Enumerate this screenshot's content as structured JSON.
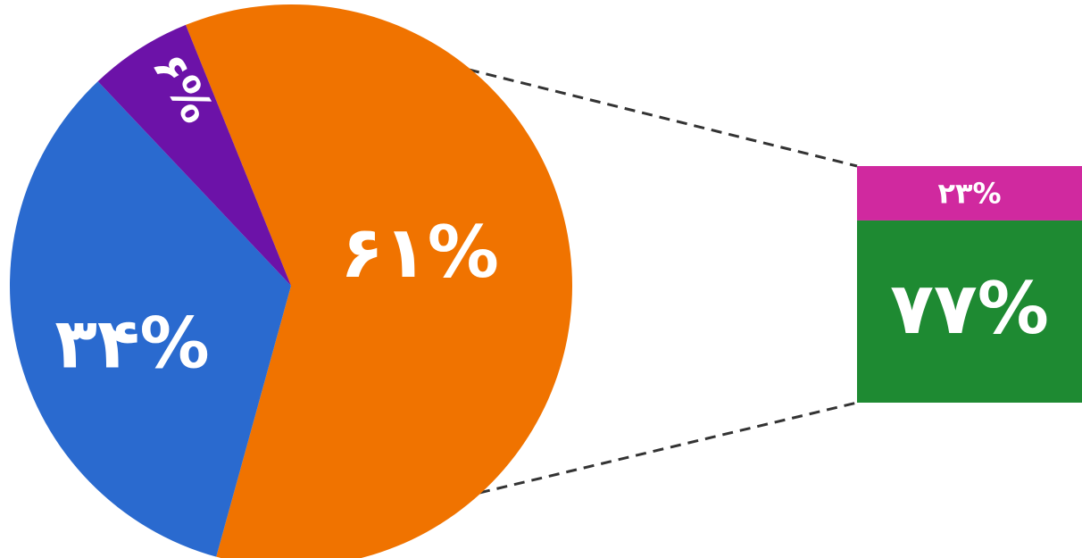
{
  "chart_data": {
    "type": "bar-of-pie",
    "pie": {
      "slices": [
        {
          "label": "۶۱%",
          "value": 61,
          "color": "#F07300"
        },
        {
          "label": "۳۴%",
          "value": 34,
          "color": "#2A6ACF"
        },
        {
          "label": "۶%",
          "value": 6,
          "color": "#6C12A8"
        }
      ]
    },
    "bar": {
      "segments": [
        {
          "label": "۲۳%",
          "value": 23,
          "color": "#D0299F"
        },
        {
          "label": "۷۷%",
          "value": 77,
          "color": "#1E8A32"
        }
      ]
    },
    "connector_style": "dashed",
    "connector_color": "#333333"
  }
}
